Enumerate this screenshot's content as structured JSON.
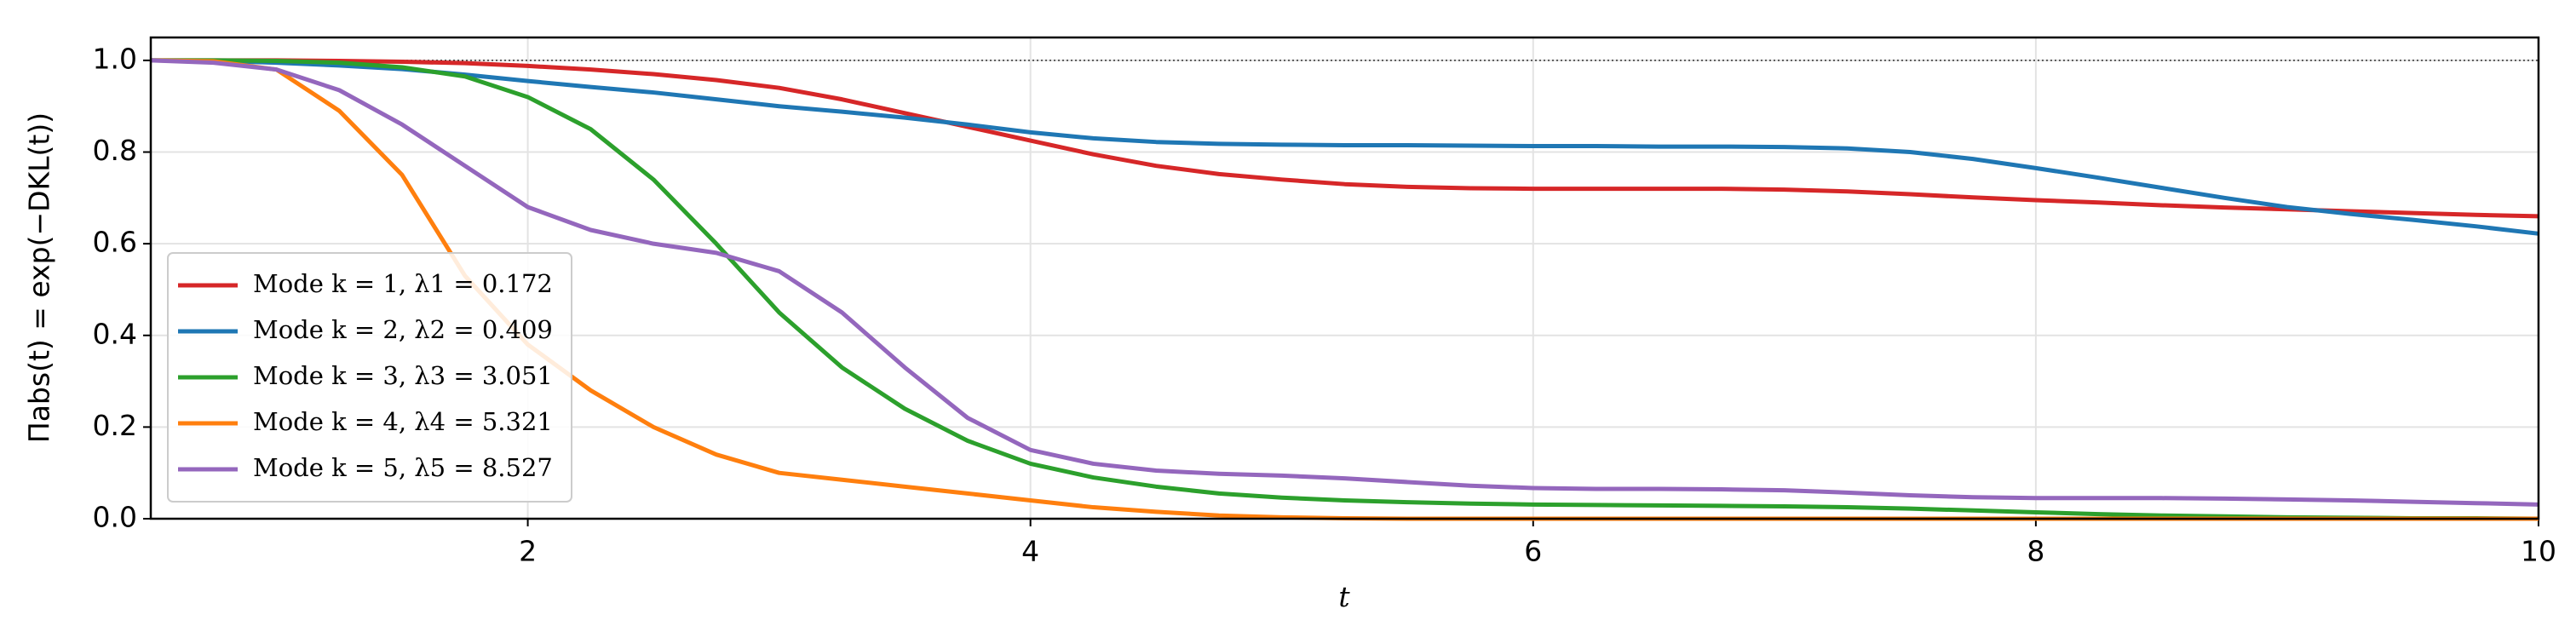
{
  "chart_data": {
    "type": "line",
    "xlabel": "t",
    "ylabel": "Πabs(t) = exp(−DKL(t))",
    "x": [
      0.5,
      0.75,
      1,
      1.25,
      1.5,
      1.75,
      2,
      2.25,
      2.5,
      2.75,
      3,
      3.25,
      3.5,
      3.75,
      4,
      4.25,
      4.5,
      4.75,
      5,
      5.25,
      5.5,
      5.75,
      6,
      6.25,
      6.5,
      6.75,
      7,
      7.25,
      7.5,
      7.75,
      8,
      8.25,
      8.5,
      8.75,
      9,
      9.25,
      9.5,
      9.75,
      10
    ],
    "series": [
      {
        "name": "Mode k = 1, λ1 = 0.172",
        "color": "#d62728",
        "values": [
          1,
          1,
          1,
          0.999,
          0.997,
          0.994,
          0.988,
          0.98,
          0.97,
          0.957,
          0.94,
          0.915,
          0.885,
          0.855,
          0.825,
          0.795,
          0.77,
          0.752,
          0.74,
          0.73,
          0.724,
          0.721,
          0.72,
          0.72,
          0.72,
          0.72,
          0.718,
          0.714,
          0.708,
          0.701,
          0.695,
          0.69,
          0.684,
          0.679,
          0.675,
          0.671,
          0.667,
          0.663,
          0.66
        ]
      },
      {
        "name": "Mode k = 2, λ2 = 0.409",
        "color": "#1f77b4",
        "values": [
          1,
          0.999,
          0.995,
          0.989,
          0.981,
          0.969,
          0.955,
          0.942,
          0.93,
          0.915,
          0.9,
          0.888,
          0.875,
          0.86,
          0.843,
          0.83,
          0.822,
          0.818,
          0.816,
          0.815,
          0.815,
          0.814,
          0.813,
          0.813,
          0.812,
          0.812,
          0.811,
          0.808,
          0.8,
          0.785,
          0.765,
          0.744,
          0.722,
          0.7,
          0.68,
          0.665,
          0.652,
          0.638,
          0.622
        ]
      },
      {
        "name": "Mode k = 3, λ3 = 3.051",
        "color": "#2ca02c",
        "values": [
          1,
          1,
          0.999,
          0.995,
          0.985,
          0.965,
          0.92,
          0.85,
          0.74,
          0.6,
          0.45,
          0.33,
          0.24,
          0.17,
          0.12,
          0.09,
          0.07,
          0.055,
          0.046,
          0.04,
          0.036,
          0.033,
          0.031,
          0.03,
          0.029,
          0.028,
          0.027,
          0.025,
          0.022,
          0.018,
          0.014,
          0.01,
          0.007,
          0.005,
          0.003,
          0.002,
          0.001,
          0.001,
          0
        ]
      },
      {
        "name": "Mode k = 4, λ4 = 5.321",
        "color": "#ff7f0e",
        "values": [
          1,
          0.998,
          0.98,
          0.89,
          0.75,
          0.53,
          0.38,
          0.28,
          0.2,
          0.14,
          0.1,
          0.085,
          0.07,
          0.055,
          0.04,
          0.025,
          0.015,
          0.007,
          0.003,
          0.001,
          0,
          0,
          0,
          0,
          0,
          0,
          0,
          0,
          0,
          0,
          0,
          0,
          0,
          0,
          0,
          0,
          0,
          0,
          0
        ]
      },
      {
        "name": "Mode k = 5, λ5 = 8.527",
        "color": "#9467bd",
        "values": [
          1,
          0.995,
          0.98,
          0.935,
          0.86,
          0.77,
          0.68,
          0.63,
          0.6,
          0.58,
          0.54,
          0.45,
          0.33,
          0.22,
          0.15,
          0.12,
          0.105,
          0.098,
          0.094,
          0.088,
          0.08,
          0.072,
          0.067,
          0.065,
          0.065,
          0.064,
          0.062,
          0.057,
          0.051,
          0.047,
          0.045,
          0.045,
          0.045,
          0.044,
          0.042,
          0.04,
          0.037,
          0.034,
          0.031
        ]
      }
    ],
    "hline": 1,
    "xlim": [
      0.5,
      10
    ],
    "ylim": [
      0,
      1.05
    ],
    "xticks": [
      2,
      4,
      6,
      8,
      10
    ],
    "yticks": [
      {
        "value": 0,
        "label": "0.0"
      },
      {
        "value": 0.2,
        "label": "0.2"
      },
      {
        "value": 0.4,
        "label": "0.4"
      },
      {
        "value": 0.6,
        "label": "0.6"
      },
      {
        "value": 0.8,
        "label": "0.8"
      },
      {
        "value": 1,
        "label": "1.0"
      }
    ],
    "grid": true,
    "legend": "lower left"
  }
}
